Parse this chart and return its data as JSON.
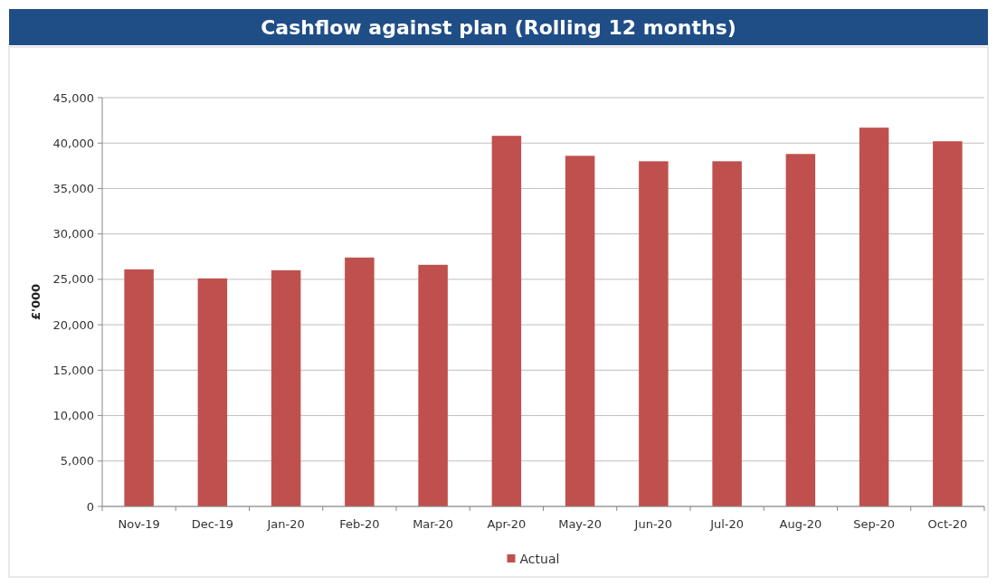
{
  "chart_data": {
    "type": "bar",
    "title": "Cashflow against plan (Rolling 12 months)",
    "ylabel": "£'000",
    "categories": [
      "Nov-19",
      "Dec-19",
      "Jan-20",
      "Feb-20",
      "Mar-20",
      "Apr-20",
      "May-20",
      "Jun-20",
      "Jul-20",
      "Aug-20",
      "Sep-20",
      "Oct-20"
    ],
    "series": [
      {
        "name": "Actual",
        "color": "#c0504d",
        "values": [
          26100,
          25100,
          26000,
          27400,
          26600,
          40800,
          38600,
          38000,
          38000,
          38800,
          41700,
          40200
        ]
      }
    ],
    "ylim": [
      0,
      45000
    ],
    "yticks": [
      {
        "value": 0,
        "label": "0"
      },
      {
        "value": 5000,
        "label": "5,000"
      },
      {
        "value": 10000,
        "label": "10,000"
      },
      {
        "value": 15000,
        "label": "15,000"
      },
      {
        "value": 20000,
        "label": "20,000"
      },
      {
        "value": 25000,
        "label": "25,000"
      },
      {
        "value": 30000,
        "label": "30,000"
      },
      {
        "value": 35000,
        "label": "35,000"
      },
      {
        "value": 40000,
        "label": "40,000"
      },
      {
        "value": 45000,
        "label": "45,000"
      }
    ],
    "grid": "y",
    "legend": "bottom"
  }
}
